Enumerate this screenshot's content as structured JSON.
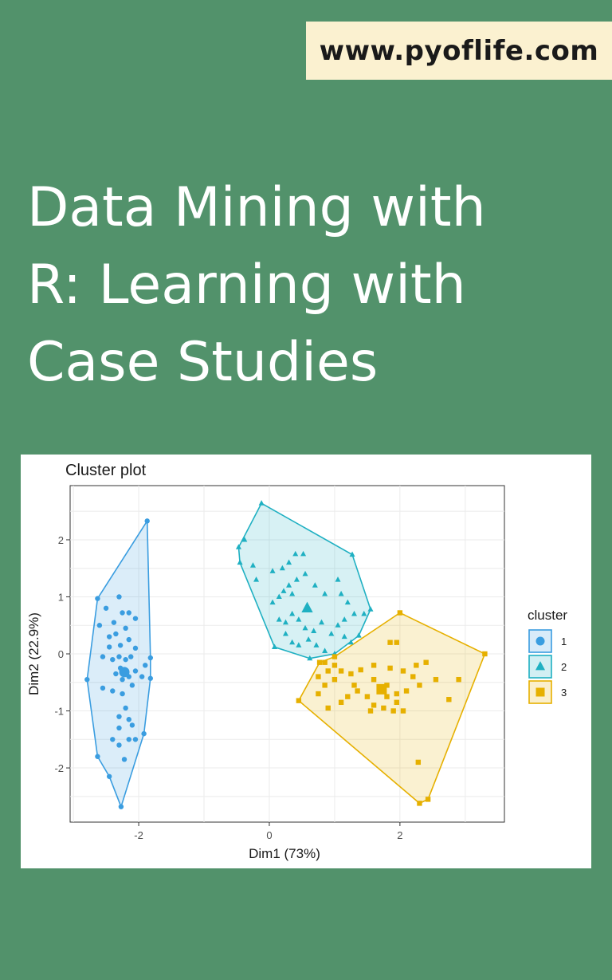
{
  "site": {
    "url": "www.pyoflife.com"
  },
  "book": {
    "title_lines": [
      "Data Mining with",
      "R: Learning with",
      "Case Studies"
    ]
  },
  "colors": {
    "background": "#52926b",
    "badge": "#fbf1d0",
    "cluster1": "#3a9de0",
    "cluster2": "#1fb0c2",
    "cluster3": "#e6b000"
  },
  "chart_data": {
    "type": "scatter",
    "title": "Cluster plot",
    "xlabel": "Dim1 (73%)",
    "ylabel": "Dim2 (22.9%)",
    "xlim": [
      -3.05,
      3.6
    ],
    "ylim": [
      -2.95,
      2.95
    ],
    "xticks": [
      -2,
      0,
      2
    ],
    "yticks": [
      -2,
      -1,
      0,
      1,
      2
    ],
    "xtick_labels": [
      "-2",
      "0",
      "2"
    ],
    "ytick_labels": [
      "-2",
      "-1",
      "0",
      "1",
      "2"
    ],
    "grid": true,
    "legend": {
      "title": "cluster",
      "position": "right"
    },
    "series": [
      {
        "name": "1",
        "shape": "circle",
        "color": "#3a9de0",
        "centroid": [
          -2.22,
          -0.32
        ],
        "hull": [
          [
            -1.87,
            2.33
          ],
          [
            -2.63,
            0.97
          ],
          [
            -2.79,
            -0.45
          ],
          [
            -2.63,
            -1.8
          ],
          [
            -2.45,
            -2.15
          ],
          [
            -2.27,
            -2.68
          ],
          [
            -1.92,
            -1.4
          ],
          [
            -1.82,
            -0.43
          ],
          [
            -1.82,
            -0.07
          ]
        ],
        "points": [
          [
            -2.3,
            1.0
          ],
          [
            -2.5,
            0.8
          ],
          [
            -2.6,
            0.5
          ],
          [
            -2.45,
            0.3
          ],
          [
            -2.38,
            0.55
          ],
          [
            -2.25,
            0.72
          ],
          [
            -2.15,
            0.72
          ],
          [
            -2.05,
            0.62
          ],
          [
            -2.35,
            0.35
          ],
          [
            -2.2,
            0.45
          ],
          [
            -2.15,
            0.25
          ],
          [
            -2.28,
            0.15
          ],
          [
            -2.45,
            0.12
          ],
          [
            -2.55,
            -0.05
          ],
          [
            -2.4,
            -0.1
          ],
          [
            -2.3,
            -0.05
          ],
          [
            -2.2,
            -0.1
          ],
          [
            -2.12,
            -0.05
          ],
          [
            -2.28,
            -0.25
          ],
          [
            -2.35,
            -0.35
          ],
          [
            -2.25,
            -0.45
          ],
          [
            -2.15,
            -0.4
          ],
          [
            -2.05,
            -0.3
          ],
          [
            -1.95,
            -0.4
          ],
          [
            -2.1,
            -0.55
          ],
          [
            -2.25,
            -0.7
          ],
          [
            -2.4,
            -0.65
          ],
          [
            -2.55,
            -0.6
          ],
          [
            -2.2,
            -0.95
          ],
          [
            -2.3,
            -1.1
          ],
          [
            -2.15,
            -1.15
          ],
          [
            -2.3,
            -1.3
          ],
          [
            -2.15,
            -1.5
          ],
          [
            -2.3,
            -1.6
          ],
          [
            -2.22,
            -1.85
          ],
          [
            -2.05,
            -1.5
          ],
          [
            -2.4,
            -1.5
          ],
          [
            -2.1,
            -1.25
          ],
          [
            -1.9,
            -0.2
          ],
          [
            -2.05,
            0.1
          ]
        ]
      },
      {
        "name": "2",
        "shape": "triangle",
        "color": "#1fb0c2",
        "centroid": [
          0.58,
          0.8
        ],
        "hull": [
          [
            -0.12,
            2.64
          ],
          [
            1.27,
            1.74
          ],
          [
            1.55,
            0.78
          ],
          [
            1.37,
            0.32
          ],
          [
            1.0,
            0.0
          ],
          [
            0.62,
            -0.08
          ],
          [
            0.08,
            0.12
          ],
          [
            -0.45,
            1.6
          ],
          [
            -0.47,
            1.87
          ]
        ],
        "points": [
          [
            -0.38,
            2.0
          ],
          [
            -0.25,
            1.55
          ],
          [
            -0.2,
            1.3
          ],
          [
            0.05,
            1.45
          ],
          [
            0.2,
            1.5
          ],
          [
            0.3,
            1.6
          ],
          [
            0.4,
            1.75
          ],
          [
            0.52,
            1.75
          ],
          [
            0.42,
            1.3
          ],
          [
            0.3,
            1.2
          ],
          [
            0.22,
            1.1
          ],
          [
            0.15,
            1.0
          ],
          [
            0.05,
            0.9
          ],
          [
            0.35,
            1.05
          ],
          [
            0.55,
            1.4
          ],
          [
            0.7,
            1.2
          ],
          [
            0.85,
            1.05
          ],
          [
            1.05,
            1.3
          ],
          [
            1.1,
            1.05
          ],
          [
            1.2,
            0.9
          ],
          [
            1.3,
            0.7
          ],
          [
            1.15,
            0.6
          ],
          [
            1.05,
            0.5
          ],
          [
            0.95,
            0.35
          ],
          [
            0.8,
            0.55
          ],
          [
            0.68,
            0.4
          ],
          [
            0.55,
            0.45
          ],
          [
            0.45,
            0.6
          ],
          [
            0.35,
            0.7
          ],
          [
            0.25,
            0.55
          ],
          [
            0.15,
            0.6
          ],
          [
            0.25,
            0.35
          ],
          [
            0.35,
            0.2
          ],
          [
            0.45,
            0.15
          ],
          [
            0.6,
            0.25
          ],
          [
            0.72,
            0.15
          ],
          [
            0.85,
            0.05
          ],
          [
            1.15,
            0.3
          ],
          [
            1.45,
            0.7
          ],
          [
            1.25,
            0.2
          ]
        ]
      },
      {
        "name": "3",
        "shape": "square",
        "color": "#e6b000",
        "centroid": [
          1.72,
          -0.62
        ],
        "hull": [
          [
            2.0,
            0.72
          ],
          [
            3.3,
            0.0
          ],
          [
            2.43,
            -2.55
          ],
          [
            2.3,
            -2.62
          ],
          [
            0.45,
            -0.82
          ],
          [
            0.77,
            -0.15
          ],
          [
            1.0,
            -0.05
          ]
        ],
        "points": [
          [
            0.75,
            -0.4
          ],
          [
            0.9,
            -0.3
          ],
          [
            1.0,
            -0.45
          ],
          [
            0.85,
            -0.55
          ],
          [
            0.75,
            -0.7
          ],
          [
            1.1,
            -0.3
          ],
          [
            1.25,
            -0.35
          ],
          [
            1.4,
            -0.28
          ],
          [
            1.6,
            -0.2
          ],
          [
            1.85,
            -0.25
          ],
          [
            2.05,
            -0.3
          ],
          [
            2.25,
            -0.2
          ],
          [
            2.4,
            -0.15
          ],
          [
            2.55,
            -0.45
          ],
          [
            2.3,
            -0.55
          ],
          [
            2.1,
            -0.65
          ],
          [
            1.95,
            -0.7
          ],
          [
            1.8,
            -0.75
          ],
          [
            1.95,
            -0.85
          ],
          [
            2.05,
            -1.0
          ],
          [
            1.9,
            -1.0
          ],
          [
            1.75,
            -0.95
          ],
          [
            1.6,
            -0.9
          ],
          [
            1.5,
            -0.75
          ],
          [
            1.35,
            -0.65
          ],
          [
            1.2,
            -0.75
          ],
          [
            1.1,
            -0.85
          ],
          [
            0.9,
            -0.95
          ],
          [
            1.0,
            -0.2
          ],
          [
            1.3,
            -0.55
          ],
          [
            1.55,
            -1.0
          ],
          [
            1.6,
            -0.45
          ],
          [
            1.8,
            -0.55
          ],
          [
            2.2,
            -0.4
          ],
          [
            2.75,
            -0.8
          ],
          [
            2.9,
            -0.45
          ],
          [
            1.85,
            0.2
          ],
          [
            1.95,
            0.2
          ],
          [
            2.28,
            -1.9
          ],
          [
            0.85,
            -0.15
          ]
        ]
      }
    ]
  }
}
